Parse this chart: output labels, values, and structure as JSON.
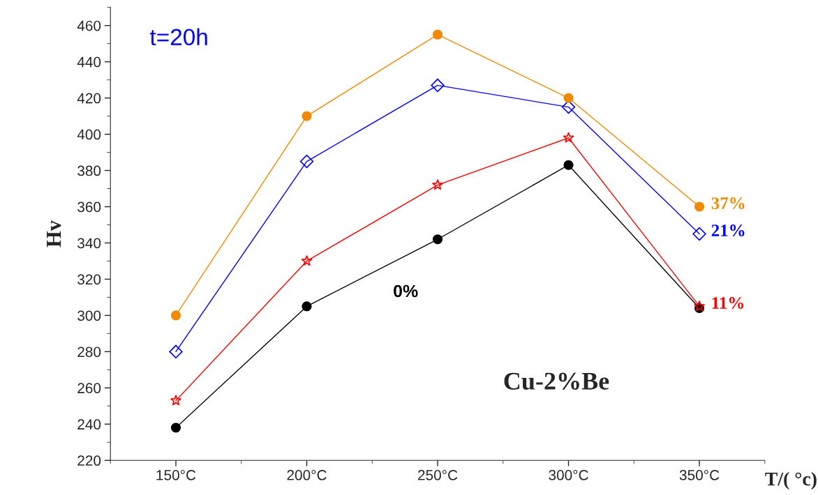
{
  "chart_data": {
    "type": "line",
    "ylabel": "Hv",
    "xlabel": "T/( °c)",
    "x": [
      150,
      200,
      250,
      300,
      350
    ],
    "xlim": [
      125,
      375
    ],
    "xticks": [
      {
        "value": 150,
        "label": "150°C"
      },
      {
        "value": 200,
        "label": "200°C"
      },
      {
        "value": 250,
        "label": "250°C"
      },
      {
        "value": 300,
        "label": "300°C"
      },
      {
        "value": 350,
        "label": "350°C"
      }
    ],
    "ylim": [
      220,
      470
    ],
    "yticks": [
      220,
      240,
      260,
      280,
      300,
      320,
      340,
      360,
      380,
      400,
      420,
      440,
      460
    ],
    "series": [
      {
        "name": "37%",
        "color": "#f08a00",
        "marker": "circle",
        "values": [
          300,
          410,
          455,
          420,
          360
        ]
      },
      {
        "name": "21%",
        "color": "#0000ff",
        "marker": "diamond",
        "values": [
          280,
          385,
          427,
          415,
          345
        ]
      },
      {
        "name": "11%",
        "color": "#ff0000",
        "marker": "star",
        "values": [
          253,
          330,
          372,
          398,
          305
        ]
      },
      {
        "name": "0%",
        "color": "#000000",
        "marker": "circle",
        "values": [
          238,
          305,
          342,
          383,
          304
        ]
      }
    ],
    "annotations": [
      "t=20h",
      "Cu-2%Be"
    ],
    "grid": false,
    "legend": false
  }
}
